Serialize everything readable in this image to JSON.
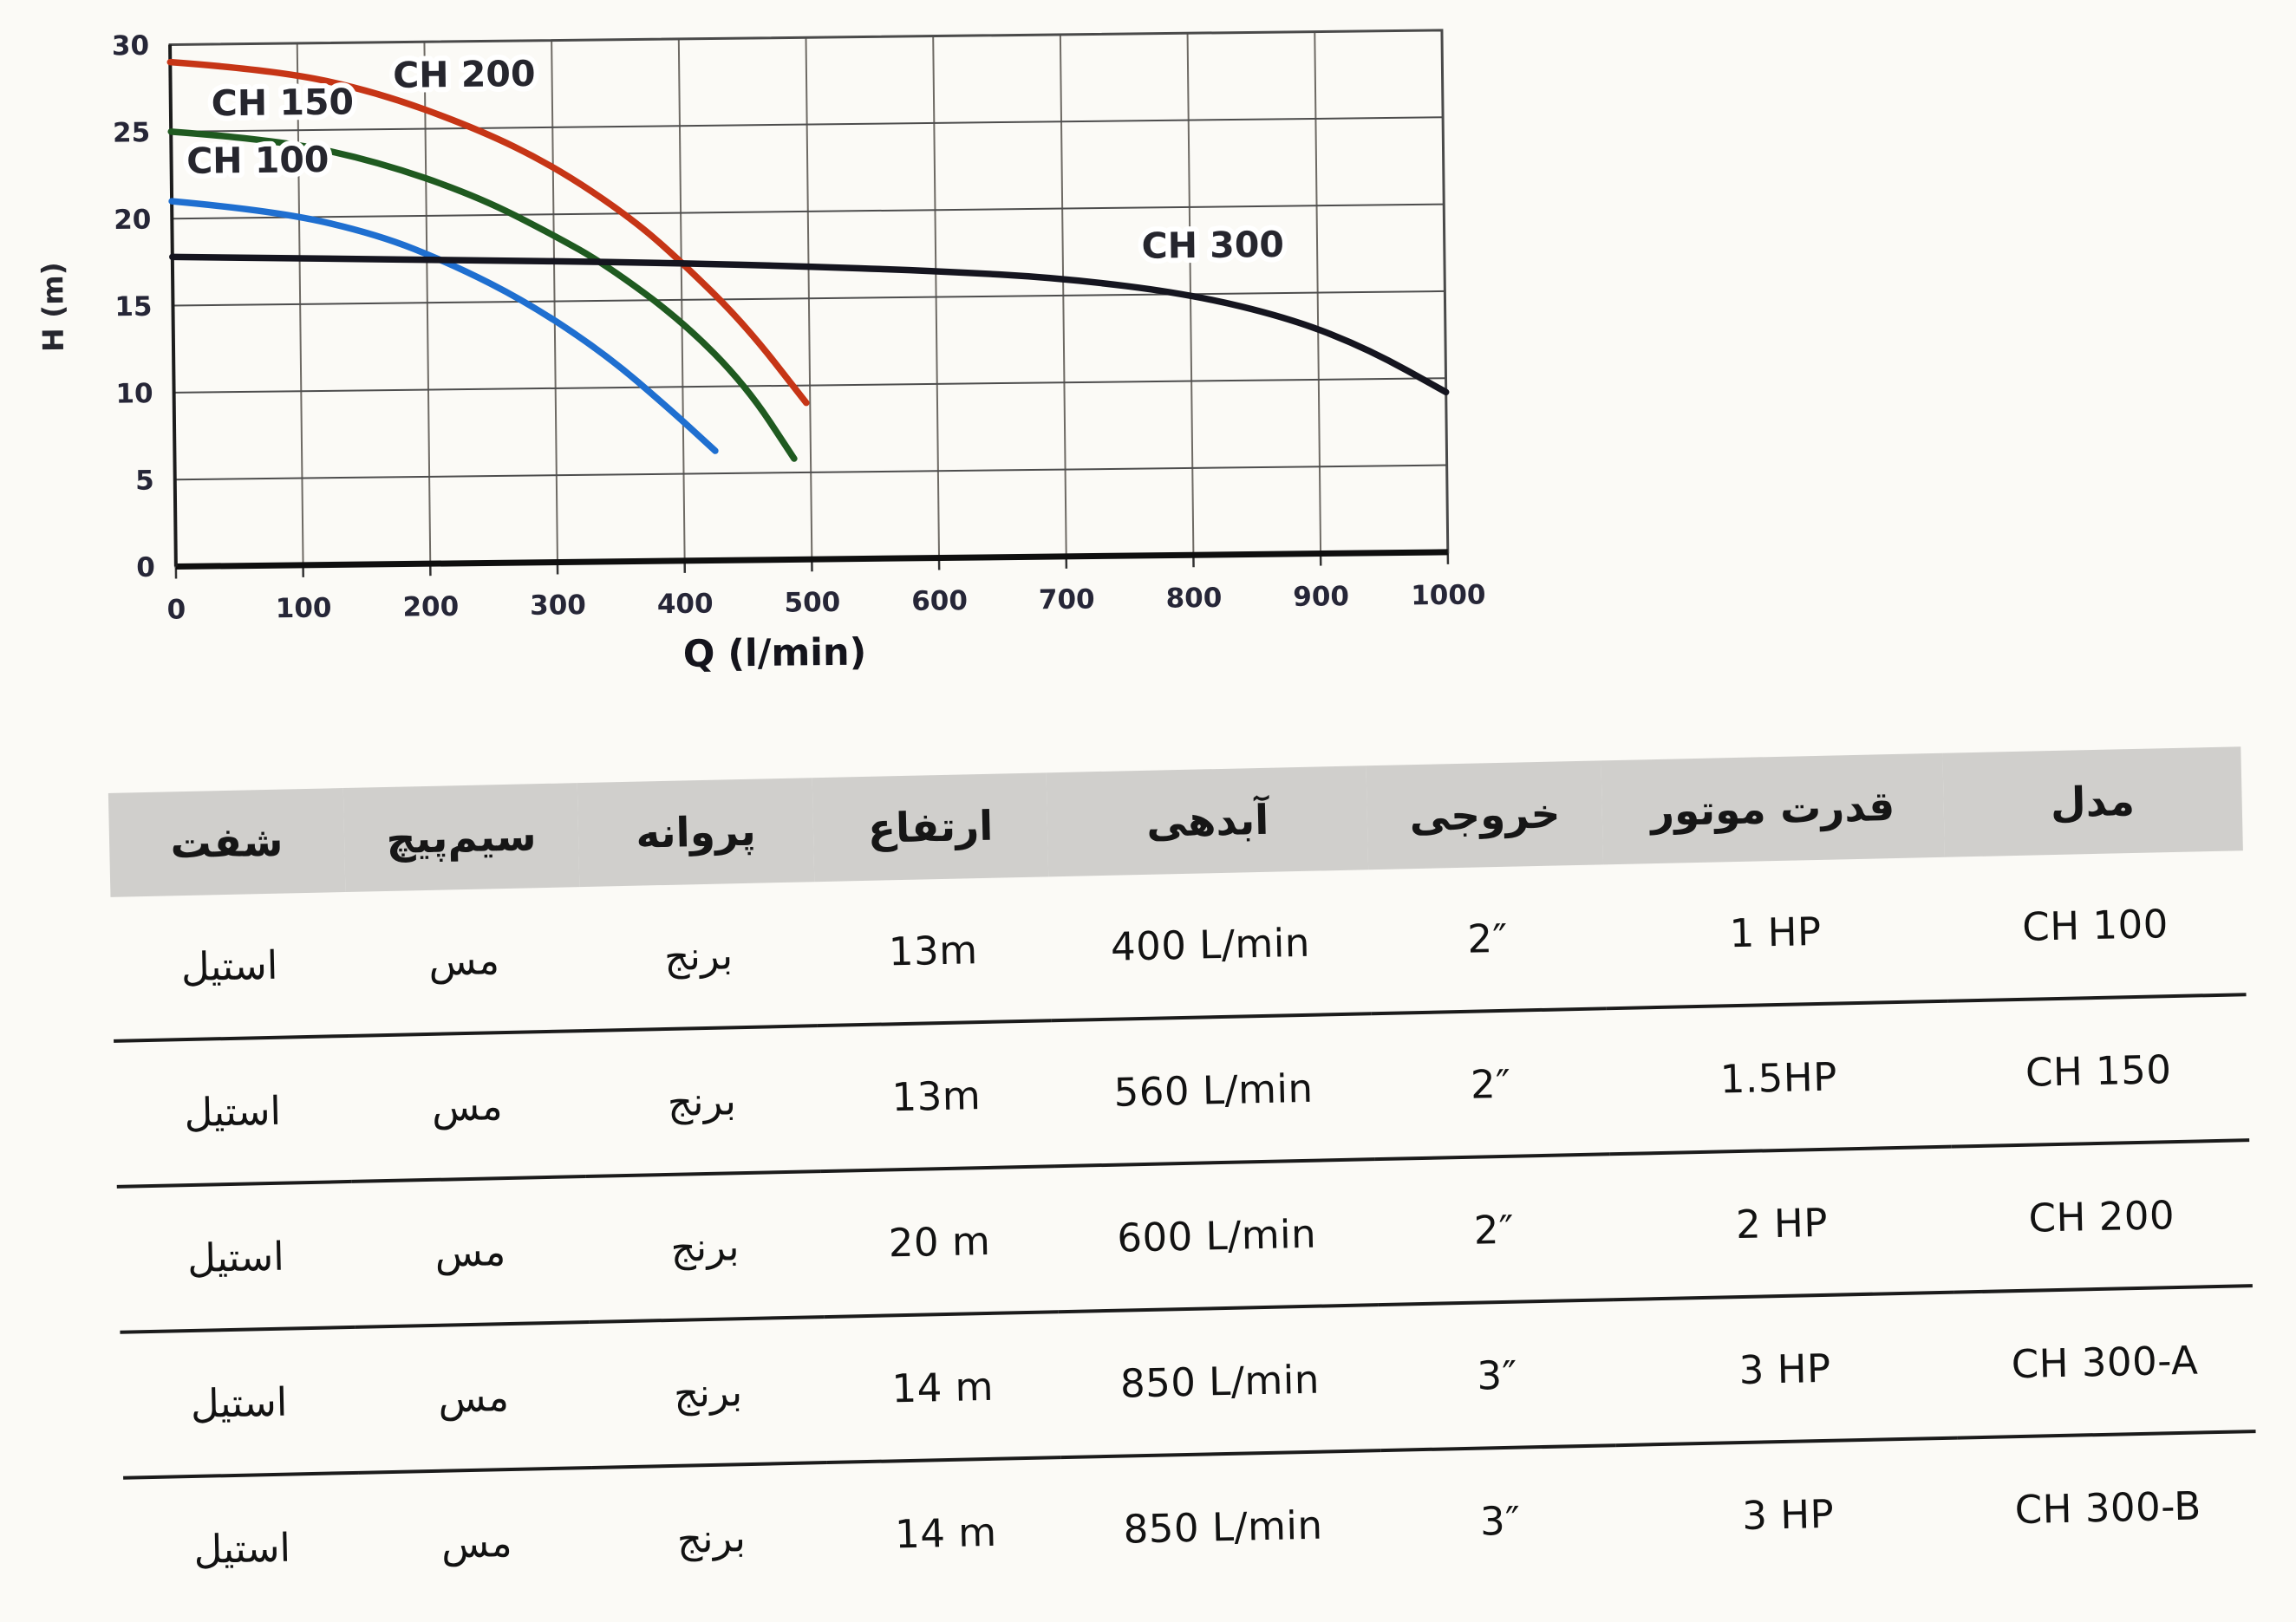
{
  "chart_data": [
    {
      "type": "line",
      "title": "",
      "xlabel": "Q (l/min)",
      "ylabel": "H (m)",
      "xlim": [
        0,
        1000
      ],
      "ylim": [
        0,
        30
      ],
      "x_ticks": [
        0,
        100,
        200,
        300,
        400,
        500,
        600,
        700,
        800,
        900,
        1000
      ],
      "y_ticks": [
        0,
        5,
        10,
        15,
        20,
        25,
        30
      ],
      "grid": true,
      "grid_color_v": "#6e6a64",
      "grid_color_h": "#4d4d4d",
      "tick_color": "#262637",
      "legend_position": "inline-labels",
      "series": [
        {
          "name": "CH 100",
          "color": "#1f6fd0",
          "points": [
            [
              0,
              21
            ],
            [
              80,
              20.4
            ],
            [
              160,
              19.0
            ],
            [
              220,
              17.2
            ],
            [
              280,
              14.9
            ],
            [
              340,
              11.9
            ],
            [
              390,
              8.7
            ],
            [
              425,
              6.3
            ]
          ]
        },
        {
          "name": "CH 150",
          "color": "#1f5a20",
          "points": [
            [
              0,
              25
            ],
            [
              80,
              24.5
            ],
            [
              160,
              23.2
            ],
            [
              240,
              21.1
            ],
            [
              300,
              18.8
            ],
            [
              340,
              17.1
            ],
            [
              400,
              13.8
            ],
            [
              450,
              10.0
            ],
            [
              487,
              5.8
            ]
          ]
        },
        {
          "name": "CH 200",
          "color": "#c63516",
          "points": [
            [
              0,
              29
            ],
            [
              80,
              28.5
            ],
            [
              160,
              27.2
            ],
            [
              240,
              25.0
            ],
            [
              300,
              22.8
            ],
            [
              360,
              19.8
            ],
            [
              400,
              17.2
            ],
            [
              450,
              13.5
            ],
            [
              497,
              9.0
            ]
          ]
        },
        {
          "name": "CH 300",
          "color": "#15151f",
          "points": [
            [
              0,
              17.8
            ],
            [
              120,
              17.6
            ],
            [
              240,
              17.4
            ],
            [
              360,
              17.2
            ],
            [
              480,
              16.9
            ],
            [
              600,
              16.5
            ],
            [
              700,
              16.0
            ],
            [
              800,
              15.0
            ],
            [
              880,
              13.5
            ],
            [
              940,
              11.7
            ],
            [
              1000,
              9.2
            ]
          ]
        }
      ],
      "labels": [
        {
          "text": "CH 100",
          "x": 12,
          "y": 22.6
        },
        {
          "text": "CH 150",
          "x": 32,
          "y": 25.9
        },
        {
          "text": "CH 200",
          "x": 175,
          "y": 27.4
        },
        {
          "text": "CH 300",
          "x": 762,
          "y": 17.1
        }
      ]
    },
    {
      "type": "table",
      "headers": [
        "مدل",
        "قدرت موتور",
        "خروجی",
        "آبدهی",
        "ارتفاع",
        "پروانه",
        "سیم‌پیچ",
        "شفت"
      ],
      "rows": [
        [
          "CH 100",
          "1 HP",
          "2″",
          "400 L/min",
          "13m",
          "برنج",
          "مس",
          "استیل"
        ],
        [
          "CH 150",
          "1.5HP",
          "2″",
          "560 L/min",
          "13m",
          "برنج",
          "مس",
          "استیل"
        ],
        [
          "CH 200",
          "2 HP",
          "2″",
          "600 L/min",
          "20 m",
          "برنج",
          "مس",
          "استیل"
        ],
        [
          "CH 300-A",
          "3 HP",
          "3″",
          "850 L/min",
          "14 m",
          "برنج",
          "مس",
          "استیل"
        ],
        [
          "CH 300-B",
          "3 HP",
          "3″",
          "850 L/min",
          "14 m",
          "برنج",
          "مس",
          "استیل"
        ]
      ]
    }
  ]
}
